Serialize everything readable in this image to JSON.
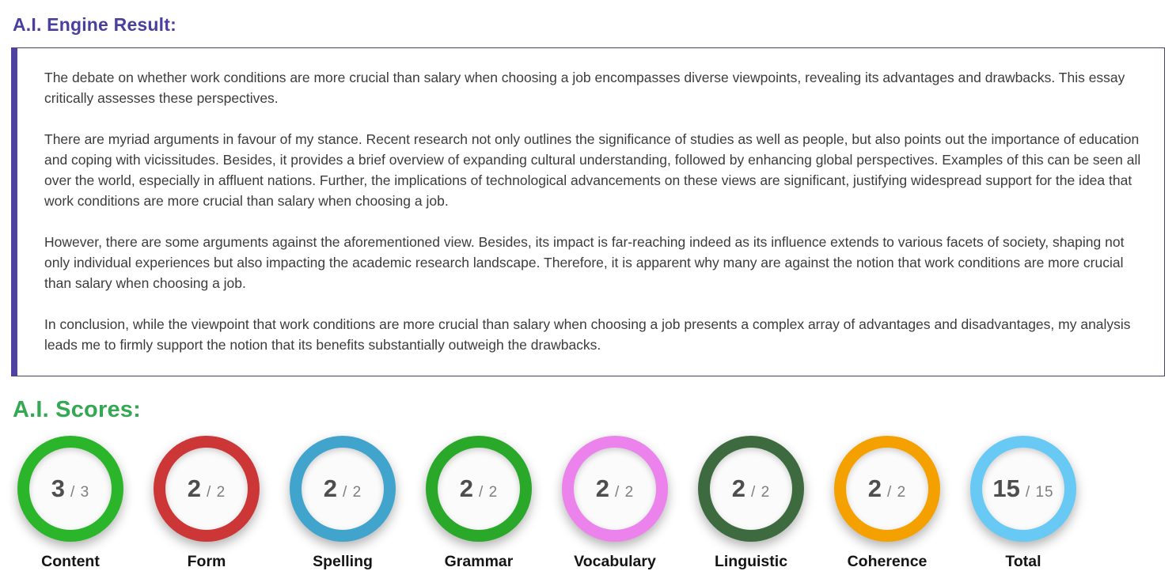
{
  "engine_result": {
    "title": "A.I. Engine Result:",
    "paragraphs": [
      {
        "text": "The debate on whether work conditions are more crucial than salary when choosing a job encompasses diverse viewpoints, revealing its advantages and drawbacks. This essay critically assesses these perspectives."
      },
      {
        "text": "There are myriad arguments in favour of my stance. Recent research not only outlines the significance of studies as well as people, but also points out the importance of education and coping with vicissitudes. Besides, it provides a brief overview of expanding cultural understanding, followed by enhancing global perspectives. Examples of this can be seen all over the world, especially in affluent nations. Further, the implications of technological advancements on these views are significant, justifying widespread support for the idea that work conditions are more crucial than salary when choosing a job."
      },
      {
        "text": "However, there are some arguments against the aforementioned view. Besides, its impact is far-reaching indeed as its influence extends to various facets of society, shaping not only individual experiences but also impacting the academic research landscape. Therefore, it is apparent why many are against the notion that work conditions are more crucial than salary when choosing a job."
      },
      {
        "text": "In conclusion, while the viewpoint that work conditions are more crucial than salary when choosing a job presents a complex array of advantages and disadvantages, my analysis leads me to firmly support the notion that its benefits substantially outweigh the drawbacks."
      }
    ]
  },
  "scores": {
    "title": "A.I. Scores:",
    "separator": "/",
    "items": [
      {
        "label": "Content",
        "score": "3",
        "max": "3",
        "ring_color": "#2bb52b"
      },
      {
        "label": "Form",
        "score": "2",
        "max": "2",
        "ring_color": "#cd3637"
      },
      {
        "label": "Spelling",
        "score": "2",
        "max": "2",
        "ring_color": "#41a4cd"
      },
      {
        "label": "Grammar",
        "score": "2",
        "max": "2",
        "ring_color": "#2aa82a"
      },
      {
        "label": "Vocabulary",
        "score": "2",
        "max": "2",
        "ring_color": "#ec83ec"
      },
      {
        "label": "Linguistic",
        "score": "2",
        "max": "2",
        "ring_color": "#3d6b3f"
      },
      {
        "label": "Coherence",
        "score": "2",
        "max": "2",
        "ring_color": "#f4a100"
      },
      {
        "label": "Total",
        "score": "15",
        "max": "15",
        "ring_color": "#67c9f4"
      }
    ]
  },
  "colors": {
    "heading_purple": "#4a3f9f",
    "heading_green": "#35a853",
    "box_border": "#474366",
    "box_accent": "#4e43a0"
  }
}
